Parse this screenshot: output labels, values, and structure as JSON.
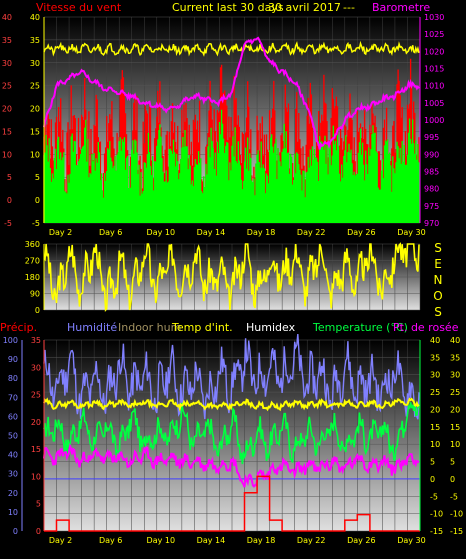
{
  "header": {
    "top_left": "Vitesse du vent",
    "top_center": "Current last 30 days",
    "top_center_date": "30 avril 2017",
    "top_center_dash": "---",
    "top_right": "Barometre"
  },
  "wind_dir_label": [
    "S",
    "E",
    "N",
    "O",
    "S"
  ],
  "bottom_header": {
    "precip": "Précip.",
    "humidite": "Humidité",
    "indoor_hum": "Indoor hum",
    "temp_int": "Temp d'int.",
    "humidex": "Humidex",
    "temperature": "Temperature (°C)",
    "dew": "Pt. de rosée"
  },
  "colors": {
    "wind_avg": "#00ff00",
    "wind_gust": "#ff0000",
    "barometer": "#ff00ff",
    "wind_dir": "#ffff00",
    "humidity": "#8080ff",
    "indoor_temp": "#ffff00",
    "temperature": "#00ff40",
    "dew": "#ff00ff",
    "precip": "#ff0000",
    "axis_left": "#ff4040",
    "axis_right": "#ff00ff",
    "axis_right2": "#ffff00",
    "axis_humidity": "#8080ff"
  },
  "chart_data": [
    {
      "type": "area",
      "title": "Current last 30 days",
      "x_ticks": [
        "Day 2",
        "Day 6",
        "Day 10",
        "Day 14",
        "Day 18",
        "Day 22",
        "Day 26",
        "Day 30"
      ],
      "y_left_ticks": [
        "-5",
        "0",
        "5",
        "10",
        "15",
        "20",
        "25",
        "30",
        "35",
        "40"
      ],
      "y_left_range": [
        -5,
        40
      ],
      "y_mid_ticks": [
        "0",
        "5",
        "10",
        "15",
        "20",
        "25",
        "30",
        "35",
        "40"
      ],
      "y_right_ticks": [
        "970",
        "975",
        "980",
        "985",
        "990",
        "995",
        "1000",
        "1005",
        "1010",
        "1015",
        "1020",
        "1025",
        "1030"
      ],
      "y_right_range": [
        970,
        1030
      ],
      "series": [
        {
          "name": "Vitesse du vent",
          "values": [
            8,
            10,
            7,
            12,
            9,
            6,
            11,
            8,
            7,
            10,
            9,
            12,
            8,
            7,
            14,
            10,
            8,
            6,
            9,
            11,
            8,
            7,
            10,
            12,
            9,
            8,
            11,
            7,
            9,
            13
          ]
        },
        {
          "name": "Barometre",
          "values": [
            998,
            1010,
            1012,
            1014,
            1011,
            1009,
            1008,
            1007,
            1005,
            1004,
            1003,
            1005,
            1007,
            1006,
            1005,
            1008,
            1022,
            1024,
            1017,
            1014,
            1011,
            1004,
            992,
            994,
            1000,
            1003,
            1004,
            1006,
            1007,
            1010
          ]
        }
      ]
    },
    {
      "type": "line",
      "title": "",
      "x_ticks": [
        "Day 2",
        "Day 6",
        "Day 10",
        "Day 14",
        "Day 18",
        "Day 22",
        "Day 26",
        "Day 30"
      ],
      "y_ticks": [
        "0",
        "90",
        "180",
        "270",
        "360"
      ],
      "y_range": [
        0,
        360
      ],
      "series": [
        {
          "name": "Wind direction",
          "values": [
            310,
            60,
            300,
            120,
            330,
            50,
            250,
            90,
            320,
            110,
            280,
            160,
            300,
            140,
            200,
            90,
            320,
            100,
            270,
            180,
            300,
            120,
            330,
            90,
            260,
            140,
            320,
            110,
            300,
            340
          ]
        }
      ]
    },
    {
      "type": "line",
      "title": "",
      "x_ticks": [
        "Day 2",
        "Day 6",
        "Day 10",
        "Day 14",
        "Day 18",
        "Day 22",
        "Day 26",
        "Day 30"
      ],
      "y_humidity_ticks": [
        "0",
        "10",
        "20",
        "30",
        "40",
        "50",
        "60",
        "70",
        "80",
        "90",
        "100"
      ],
      "y_precip_ticks": [
        "0",
        "5",
        "10",
        "15",
        "20",
        "25",
        "30",
        "35"
      ],
      "y_right_ticks": [
        "-15",
        "-10",
        "-5",
        "0",
        "5",
        "10",
        "15",
        "20",
        "25",
        "30",
        "35",
        "40"
      ],
      "y_right_range": [
        -15,
        40
      ],
      "series": [
        {
          "name": "Humidité",
          "values": [
            85,
            72,
            90,
            68,
            80,
            70,
            88,
            74,
            82,
            70,
            86,
            72,
            80,
            68,
            84,
            75,
            90,
            78,
            86,
            80,
            92,
            76,
            84,
            70,
            88,
            74,
            80,
            72,
            84,
            70
          ]
        },
        {
          "name": "Temp d'int.",
          "values": [
            22,
            21,
            22,
            21,
            22,
            21,
            22,
            21,
            22,
            21,
            22,
            21,
            22,
            21,
            21,
            21,
            22,
            21,
            21,
            21,
            22,
            21,
            22,
            21,
            22,
            21,
            22,
            21,
            22,
            22
          ]
        },
        {
          "name": "Temperature (°C)",
          "values": [
            12,
            16,
            10,
            17,
            11,
            15,
            9,
            18,
            10,
            14,
            12,
            19,
            10,
            15,
            8,
            17,
            6,
            14,
            9,
            16,
            8,
            14,
            10,
            16,
            9,
            15,
            11,
            15,
            8,
            21
          ]
        },
        {
          "name": "Pt. de rosée",
          "values": [
            7,
            6,
            8,
            5,
            7,
            6,
            6,
            5,
            7,
            5,
            6,
            5,
            5,
            4,
            4,
            5,
            -1,
            0,
            2,
            4,
            2,
            4,
            3,
            5,
            3,
            6,
            4,
            5,
            3,
            6
          ]
        },
        {
          "name": "Précip.",
          "values": [
            0,
            2,
            0,
            0,
            0,
            0,
            0,
            0,
            0,
            0,
            0,
            0,
            0,
            0,
            0,
            0,
            7,
            10,
            2,
            0,
            0,
            0,
            0,
            0,
            2,
            3,
            0,
            0,
            0,
            0
          ]
        }
      ]
    }
  ]
}
